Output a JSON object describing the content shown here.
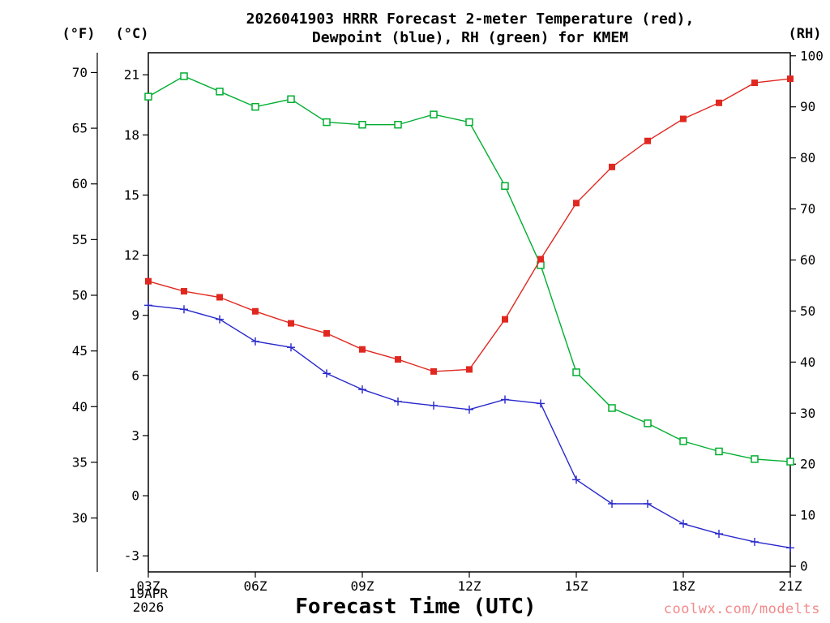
{
  "title": {
    "line1": "2026041903 HRRR Forecast 2-meter Temperature (red),",
    "line2": "Dewpoint (blue), RH (green) for KMEM"
  },
  "axis_unit_labels": {
    "fahrenheit": "(°F)",
    "celsius": "(°C)",
    "rh": "(RH)"
  },
  "x_axis": {
    "title": "Forecast Time (UTC)",
    "date_line1": "19APR",
    "date_line2": "2026"
  },
  "watermark": "coolwx.com/modelts",
  "colors": {
    "temperature": "#e02820",
    "dewpoint": "#2828cc",
    "rh": "#00ae30",
    "axis": "#000000",
    "watermark": "#f28a8a"
  },
  "chart_data": {
    "type": "line",
    "title": "2026041903 HRRR Forecast 2-meter Temperature (red), Dewpoint (blue), RH (green) for KMEM",
    "xlabel": "Forecast Time (UTC)",
    "x_hours": [
      3,
      4,
      5,
      6,
      7,
      8,
      9,
      10,
      11,
      12,
      13,
      14,
      15,
      16,
      17,
      18,
      19,
      20,
      21
    ],
    "x_tick_hours": [
      3,
      6,
      9,
      12,
      15,
      18,
      21
    ],
    "x_tick_labels": [
      "03Z",
      "06Z",
      "09Z",
      "12Z",
      "15Z",
      "18Z",
      "21Z"
    ],
    "celsius_axis": {
      "ticks": [
        21,
        18,
        15,
        12,
        9,
        6,
        3,
        0,
        -3
      ],
      "ylim": [
        -3.8,
        22.1
      ]
    },
    "fahrenheit_axis": {
      "ticks": [
        70,
        65,
        60,
        55,
        50,
        45,
        40,
        35,
        30
      ]
    },
    "rh_axis": {
      "ticks": [
        100,
        90,
        80,
        70,
        60,
        50,
        40,
        30,
        20,
        10,
        0
      ],
      "ylim": [
        -1.1,
        100.6
      ]
    },
    "series": [
      {
        "name": "RH",
        "unit": "%",
        "axis": "rh",
        "marker": "open-square",
        "color": "#00ae30",
        "values": [
          92,
          96,
          93,
          90,
          91.5,
          87,
          86.5,
          86.5,
          88.5,
          87,
          74.5,
          59,
          38,
          31,
          28,
          24.5,
          22.5,
          21,
          20.5
        ]
      },
      {
        "name": "Dewpoint",
        "unit": "C",
        "axis": "celsius",
        "marker": "plus",
        "color": "#2828cc",
        "values": [
          9.5,
          9.3,
          8.8,
          7.7,
          7.4,
          6.1,
          5.3,
          4.7,
          4.5,
          4.3,
          4.8,
          4.6,
          0.8,
          -0.4,
          -0.4,
          -1.4,
          -1.9,
          -2.3,
          -2.6
        ]
      },
      {
        "name": "2-meter Temperature",
        "unit": "C",
        "axis": "celsius",
        "marker": "filled-square",
        "color": "#e02820",
        "values": [
          10.7,
          10.2,
          9.9,
          9.2,
          8.6,
          8.1,
          7.3,
          6.8,
          6.2,
          6.3,
          8.8,
          11.8,
          14.6,
          16.4,
          17.7,
          18.8,
          19.6,
          20.6,
          20.8
        ]
      }
    ]
  }
}
